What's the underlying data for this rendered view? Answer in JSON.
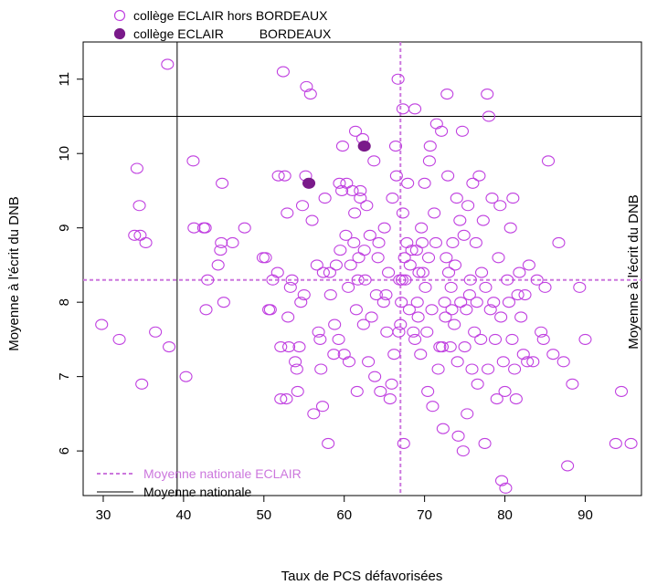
{
  "chart_data": {
    "type": "scatter",
    "xlabel": "Taux de PCS défavorisées",
    "ylabel": "Moyenne à l'écrit du DNB",
    "ylabel_right": "Moyenne à l'écrit du DNB",
    "xlim": [
      27.5,
      97
    ],
    "ylim": [
      5.4,
      11.5
    ],
    "x_ticks": [
      30,
      40,
      50,
      60,
      70,
      80,
      90
    ],
    "y_ticks": [
      6,
      7,
      8,
      9,
      10,
      11
    ],
    "grid": false,
    "legend_top": {
      "entries": [
        {
          "label": "collège ECLAIR hors BORDEAUX",
          "marker": "open-circle"
        },
        {
          "label": "collège ECLAIR          BORDEAUX",
          "marker": "filled-circle"
        }
      ]
    },
    "legend_bottom": {
      "placement": "bottom-left",
      "entries": [
        {
          "label": "Moyenne nationale ECLAIR",
          "line": "dashed"
        },
        {
          "label": "Moyenne nationale",
          "line": "solid"
        }
      ]
    },
    "reference_lines": {
      "national_x": 39.2,
      "national_y": 10.5,
      "eclair_x": 67,
      "eclair_y": 8.3
    },
    "colors": {
      "open_marker": "#c040e0",
      "filled_marker": "#7a1a8a",
      "eclair_line": "#cc77dd",
      "national_line": "#000000",
      "eclair_legend_text": "#cc77dd"
    },
    "series": [
      {
        "name": "collège ECLAIR hors BORDEAUX",
        "points": [
          [
            29.8,
            7.7
          ],
          [
            32,
            7.5
          ],
          [
            33.9,
            8.9
          ],
          [
            34.2,
            9.8
          ],
          [
            34.5,
            9.3
          ],
          [
            34.6,
            8.9
          ],
          [
            34.8,
            6.9
          ],
          [
            35.3,
            8.8
          ],
          [
            36.5,
            7.6
          ],
          [
            38,
            11.2
          ],
          [
            38.2,
            7.4
          ],
          [
            40.3,
            7.0
          ],
          [
            41.2,
            9.9
          ],
          [
            41.3,
            9.0
          ],
          [
            42.5,
            9.0
          ],
          [
            42.7,
            9.0
          ],
          [
            42.8,
            7.9
          ],
          [
            43,
            8.3
          ],
          [
            44.3,
            8.5
          ],
          [
            44.6,
            8.7
          ],
          [
            44.7,
            8.8
          ],
          [
            44.8,
            9.6
          ],
          [
            45,
            8.0
          ],
          [
            46.1,
            8.8
          ],
          [
            47.6,
            9.0
          ],
          [
            49.9,
            8.6
          ],
          [
            50.2,
            8.6
          ],
          [
            50.6,
            7.9
          ],
          [
            50.8,
            7.9
          ],
          [
            51.1,
            8.3
          ],
          [
            51.7,
            8.4
          ],
          [
            51.8,
            9.7
          ],
          [
            52.1,
            6.7
          ],
          [
            52.1,
            7.4
          ],
          [
            52.4,
            11.1
          ],
          [
            52.6,
            9.7
          ],
          [
            52.8,
            6.7
          ],
          [
            52.9,
            9.2
          ],
          [
            53,
            7.8
          ],
          [
            53.1,
            7.4
          ],
          [
            53.3,
            8.2
          ],
          [
            53.5,
            8.3
          ],
          [
            53.9,
            7.2
          ],
          [
            54.1,
            7.1
          ],
          [
            54.2,
            6.8
          ],
          [
            54.4,
            7.4
          ],
          [
            54.6,
            8.0
          ],
          [
            54.8,
            9.3
          ],
          [
            55,
            8.1
          ],
          [
            55.2,
            9.7
          ],
          [
            55.3,
            10.9
          ],
          [
            55.8,
            10.8
          ],
          [
            56,
            9.1
          ],
          [
            56.2,
            6.5
          ],
          [
            56.6,
            8.5
          ],
          [
            56.8,
            7.6
          ],
          [
            57,
            7.5
          ],
          [
            57.1,
            7.1
          ],
          [
            57.3,
            6.6
          ],
          [
            57.4,
            8.4
          ],
          [
            57.6,
            9.4
          ],
          [
            58,
            6.1
          ],
          [
            58.2,
            8.4
          ],
          [
            58.3,
            8.1
          ],
          [
            58.7,
            7.3
          ],
          [
            58.8,
            7.7
          ],
          [
            59,
            8.5
          ],
          [
            59.3,
            7.5
          ],
          [
            59.4,
            9.6
          ],
          [
            59.5,
            8.7
          ],
          [
            59.7,
            9.5
          ],
          [
            59.8,
            10.1
          ],
          [
            60,
            7.3
          ],
          [
            60.2,
            8.9
          ],
          [
            60.3,
            9.6
          ],
          [
            60.5,
            8.2
          ],
          [
            60.6,
            7.2
          ],
          [
            60.8,
            8.5
          ],
          [
            61,
            9.5
          ],
          [
            61.2,
            8.8
          ],
          [
            61.3,
            9.2
          ],
          [
            61.4,
            10.3
          ],
          [
            61.5,
            7.9
          ],
          [
            61.6,
            6.8
          ],
          [
            61.7,
            8.3
          ],
          [
            61.8,
            8.6
          ],
          [
            62,
            9.4
          ],
          [
            62,
            9.5
          ],
          [
            62.3,
            10.2
          ],
          [
            62.4,
            7.7
          ],
          [
            62.5,
            8.7
          ],
          [
            62.6,
            8.3
          ],
          [
            62.8,
            9.3
          ],
          [
            63,
            7.2
          ],
          [
            63.2,
            8.9
          ],
          [
            63.4,
            7.8
          ],
          [
            63.7,
            9.9
          ],
          [
            63.8,
            7.0
          ],
          [
            64,
            8.1
          ],
          [
            64.2,
            8.6
          ],
          [
            64.3,
            8.8
          ],
          [
            64.5,
            6.8
          ],
          [
            64.9,
            8.0
          ],
          [
            65,
            9.0
          ],
          [
            65.2,
            8.1
          ],
          [
            65.3,
            7.6
          ],
          [
            65.5,
            8.4
          ],
          [
            65.7,
            6.7
          ],
          [
            65.9,
            6.9
          ],
          [
            66,
            9.4
          ],
          [
            66.2,
            7.3
          ],
          [
            66.4,
            10.1
          ],
          [
            66.5,
            9.7
          ],
          [
            66.7,
            11.0
          ],
          [
            66.8,
            7.6
          ],
          [
            66.9,
            8.3
          ],
          [
            67,
            7.7
          ],
          [
            67.1,
            8.0
          ],
          [
            67.2,
            8.3
          ],
          [
            67.3,
            10.6
          ],
          [
            67.3,
            9.2
          ],
          [
            67.4,
            6.1
          ],
          [
            67.5,
            8.6
          ],
          [
            67.6,
            8.3
          ],
          [
            67.8,
            8.8
          ],
          [
            67.9,
            9.6
          ],
          [
            68.1,
            7.9
          ],
          [
            68.2,
            8.5
          ],
          [
            68.4,
            8.7
          ],
          [
            68.6,
            7.6
          ],
          [
            68.8,
            10.6
          ],
          [
            68.8,
            7.5
          ],
          [
            69,
            8.7
          ],
          [
            69.1,
            8.0
          ],
          [
            69.2,
            7.8
          ],
          [
            69.3,
            8.4
          ],
          [
            69.5,
            7.3
          ],
          [
            69.6,
            9.0
          ],
          [
            69.7,
            8.8
          ],
          [
            69.8,
            8.4
          ],
          [
            70,
            9.6
          ],
          [
            70.1,
            8.2
          ],
          [
            70.3,
            7.6
          ],
          [
            70.4,
            6.8
          ],
          [
            70.5,
            8.6
          ],
          [
            70.6,
            9.9
          ],
          [
            70.7,
            10.1
          ],
          [
            70.9,
            7.9
          ],
          [
            71,
            6.6
          ],
          [
            71.2,
            9.2
          ],
          [
            71.4,
            8.8
          ],
          [
            71.5,
            10.4
          ],
          [
            71.7,
            7.1
          ],
          [
            71.9,
            7.4
          ],
          [
            72.1,
            10.3
          ],
          [
            72.2,
            7.4
          ],
          [
            72.3,
            6.3
          ],
          [
            72.5,
            8.0
          ],
          [
            72.6,
            7.8
          ],
          [
            72.7,
            8.6
          ],
          [
            72.8,
            10.8
          ],
          [
            72.9,
            9.7
          ],
          [
            73,
            8.4
          ],
          [
            73.2,
            7.4
          ],
          [
            73.3,
            8.2
          ],
          [
            73.4,
            7.9
          ],
          [
            73.5,
            8.8
          ],
          [
            73.7,
            7.7
          ],
          [
            73.8,
            8.5
          ],
          [
            74,
            9.4
          ],
          [
            74.1,
            7.2
          ],
          [
            74.2,
            6.2
          ],
          [
            74.4,
            9.1
          ],
          [
            74.5,
            8.0
          ],
          [
            74.7,
            10.3
          ],
          [
            74.8,
            6.0
          ],
          [
            74.9,
            8.9
          ],
          [
            75,
            7.4
          ],
          [
            75.2,
            7.9
          ],
          [
            75.3,
            6.5
          ],
          [
            75.4,
            9.3
          ],
          [
            75.6,
            8.1
          ],
          [
            75.7,
            8.3
          ],
          [
            75.9,
            7.1
          ],
          [
            76,
            9.6
          ],
          [
            76.2,
            7.6
          ],
          [
            76.4,
            8.8
          ],
          [
            76.5,
            8.0
          ],
          [
            76.6,
            6.9
          ],
          [
            76.8,
            9.7
          ],
          [
            77,
            7.5
          ],
          [
            77.1,
            8.4
          ],
          [
            77.3,
            9.1
          ],
          [
            77.5,
            6.1
          ],
          [
            77.6,
            8.2
          ],
          [
            77.8,
            10.8
          ],
          [
            77.9,
            7.1
          ],
          [
            78,
            10.5
          ],
          [
            78.2,
            7.9
          ],
          [
            78.4,
            9.4
          ],
          [
            78.6,
            8.0
          ],
          [
            78.8,
            7.5
          ],
          [
            79,
            6.7
          ],
          [
            79.2,
            8.6
          ],
          [
            79.4,
            9.3
          ],
          [
            79.5,
            7.8
          ],
          [
            79.6,
            5.6
          ],
          [
            79.8,
            7.2
          ],
          [
            80,
            6.8
          ],
          [
            80.1,
            5.5
          ],
          [
            80.3,
            8.3
          ],
          [
            80.5,
            8.0
          ],
          [
            80.7,
            9.0
          ],
          [
            80.9,
            7.5
          ],
          [
            81,
            9.4
          ],
          [
            81.2,
            7.1
          ],
          [
            81.4,
            6.7
          ],
          [
            81.6,
            8.1
          ],
          [
            81.8,
            8.4
          ],
          [
            82,
            7.8
          ],
          [
            82.3,
            7.3
          ],
          [
            82.5,
            8.1
          ],
          [
            82.8,
            7.2
          ],
          [
            83,
            8.5
          ],
          [
            83.5,
            7.2
          ],
          [
            84,
            8.3
          ],
          [
            84.5,
            7.6
          ],
          [
            84.8,
            7.5
          ],
          [
            85,
            8.2
          ],
          [
            85.4,
            9.9
          ],
          [
            86,
            7.3
          ],
          [
            86.7,
            8.8
          ],
          [
            87.3,
            7.2
          ],
          [
            87.8,
            5.8
          ],
          [
            88.4,
            6.9
          ],
          [
            89.3,
            8.2
          ],
          [
            90,
            7.5
          ],
          [
            93.8,
            6.1
          ],
          [
            94.5,
            6.8
          ],
          [
            95.7,
            6.1
          ]
        ]
      },
      {
        "name": "collège ECLAIR          BORDEAUX",
        "points": [
          [
            55.6,
            9.6
          ],
          [
            62.5,
            10.1
          ]
        ]
      }
    ]
  }
}
